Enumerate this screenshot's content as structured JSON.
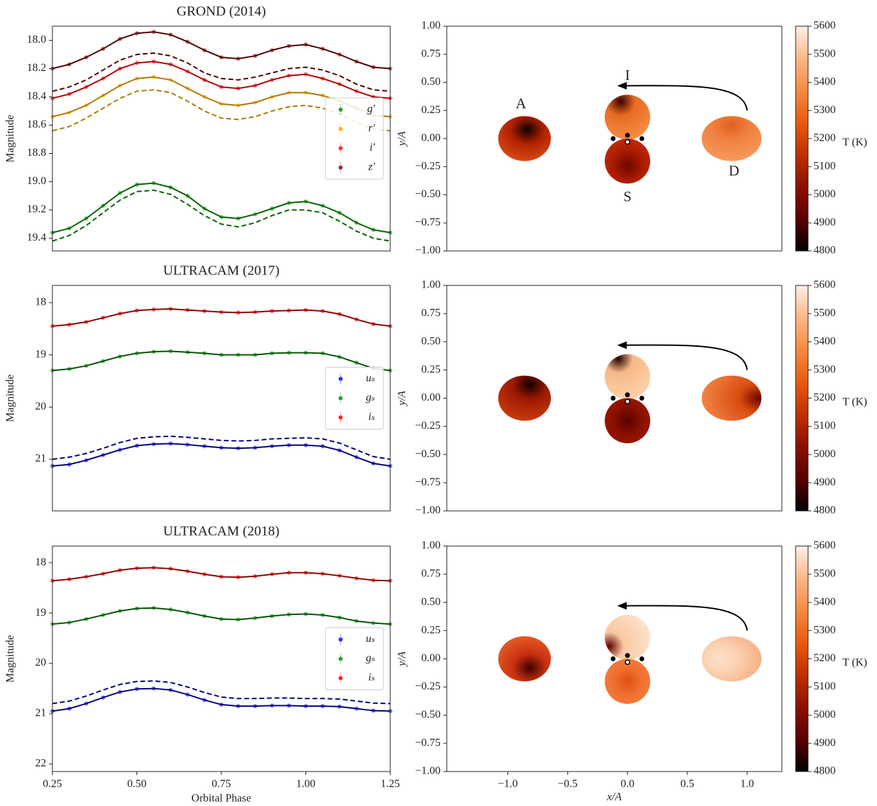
{
  "chart_data": [
    {
      "type": "line",
      "title": "GROND (2014)",
      "ylabel": "Magnitude",
      "legend": "center right",
      "xlim": [
        0.25,
        1.25
      ],
      "ylim": [
        19.49,
        17.9
      ],
      "yticks": [
        {
          "value": 18,
          "label": "18.0"
        },
        18.2,
        18.4,
        18.6,
        18.8,
        {
          "value": 19,
          "label": "19.0"
        },
        19.2,
        19.4
      ],
      "x": [
        0.25,
        0.3,
        0.35,
        0.4,
        0.45,
        0.5,
        0.55,
        0.6,
        0.65,
        0.7,
        0.75,
        0.8,
        0.85,
        0.9,
        0.95,
        1.0,
        1.05,
        1.1,
        1.15,
        1.2,
        1.25
      ],
      "series": [
        {
          "name": "g′",
          "color": "#2ca02c",
          "line_color": "#006400",
          "values": [
            19.36,
            19.33,
            19.26,
            19.17,
            19.08,
            19.02,
            19.01,
            19.04,
            19.1,
            19.19,
            19.25,
            19.26,
            19.23,
            19.19,
            19.15,
            19.14,
            19.17,
            19.22,
            19.29,
            19.34,
            19.36
          ],
          "values_dashed": [
            19.42,
            19.38,
            19.31,
            19.22,
            19.13,
            19.07,
            19.06,
            19.09,
            19.16,
            19.24,
            19.3,
            19.32,
            19.29,
            19.24,
            19.2,
            19.2,
            19.22,
            19.28,
            19.35,
            19.4,
            19.42
          ]
        },
        {
          "name": "r′",
          "color": "#ffb020",
          "line_color": "#b07800",
          "values": [
            18.54,
            18.51,
            18.46,
            18.39,
            18.32,
            18.27,
            18.26,
            18.28,
            18.34,
            18.4,
            18.45,
            18.46,
            18.44,
            18.4,
            18.37,
            18.37,
            18.39,
            18.43,
            18.48,
            18.53,
            18.54
          ],
          "values_dashed": [
            18.64,
            18.61,
            18.55,
            18.48,
            18.41,
            18.36,
            18.35,
            18.37,
            18.43,
            18.5,
            18.55,
            18.56,
            18.54,
            18.5,
            18.47,
            18.46,
            18.48,
            18.52,
            18.58,
            18.63,
            18.64
          ]
        },
        {
          "name": "i′",
          "color": "#ff3030",
          "line_color": "#b00000",
          "values": [
            18.41,
            18.38,
            18.33,
            18.27,
            18.2,
            18.16,
            18.15,
            18.17,
            18.22,
            18.28,
            18.33,
            18.34,
            18.32,
            18.28,
            18.25,
            18.24,
            18.27,
            18.31,
            18.36,
            18.4,
            18.41
          ]
        },
        {
          "name": "z′",
          "color": "#a03030",
          "line_color": "#500000",
          "values": [
            18.2,
            18.17,
            18.12,
            18.06,
            17.99,
            17.95,
            17.94,
            17.96,
            18.01,
            18.07,
            18.12,
            18.13,
            18.11,
            18.07,
            18.04,
            18.03,
            18.06,
            18.1,
            18.15,
            18.19,
            18.2
          ],
          "values_dashed": [
            18.36,
            18.33,
            18.28,
            18.21,
            18.14,
            18.1,
            18.09,
            18.11,
            18.16,
            18.23,
            18.27,
            18.28,
            18.26,
            18.23,
            18.2,
            18.19,
            18.21,
            18.25,
            18.31,
            18.35,
            18.36
          ]
        }
      ]
    },
    {
      "type": "map",
      "ylabel": "y/A",
      "annotations": [
        "A",
        "I",
        "S",
        "D"
      ],
      "xlim": [
        -1.51,
        1.29
      ],
      "ylim": [
        -1,
        1
      ],
      "yticks": [
        {
          "value": 1,
          "label": "1.00"
        },
        {
          "value": 0.75,
          "label": "0.75"
        },
        {
          "value": 0.5,
          "label": "0.50"
        },
        {
          "value": 0.25,
          "label": "0.25"
        },
        {
          "value": 0,
          "label": "0.00"
        },
        {
          "value": -0.25,
          "label": "−0.25"
        },
        {
          "value": -0.5,
          "label": "−0.50"
        },
        {
          "value": -0.75,
          "label": "−0.75"
        },
        {
          "value": -1,
          "label": "−1.00"
        }
      ],
      "clim": [
        4800,
        5600
      ],
      "cticks": [
        4800,
        4900,
        5000,
        5100,
        5200,
        5300,
        5400,
        5500,
        5600
      ],
      "clabel": "T (K)",
      "colors": [
        "#000000",
        "#5a0000",
        "#8b1000",
        "#c03000",
        "#e85a10",
        "#f48a40",
        "#fbb888",
        "#fff0e8"
      ]
    },
    {
      "type": "line",
      "title": "ULTRACAM (2017)",
      "ylabel": "Magnitude",
      "legend": "center right",
      "xlim": [
        0.25,
        1.25
      ],
      "ylim": [
        21.99,
        17.67
      ],
      "yticks": [
        18,
        19,
        20,
        21
      ],
      "x": [
        0.25,
        0.3,
        0.35,
        0.4,
        0.45,
        0.5,
        0.55,
        0.6,
        0.65,
        0.7,
        0.75,
        0.8,
        0.85,
        0.9,
        0.95,
        1.0,
        1.05,
        1.1,
        1.15,
        1.2,
        1.25
      ],
      "series": [
        {
          "name": "uₛ",
          "color": "#3030ff",
          "line_color": "#000080",
          "values": [
            21.13,
            21.1,
            21.02,
            20.92,
            20.82,
            20.74,
            20.71,
            20.7,
            20.72,
            20.75,
            20.78,
            20.79,
            20.78,
            20.75,
            20.73,
            20.73,
            20.75,
            20.83,
            20.96,
            21.08,
            21.13
          ],
          "values_dashed": [
            21.0,
            20.96,
            20.89,
            20.79,
            20.68,
            20.6,
            20.57,
            20.56,
            20.58,
            20.61,
            20.64,
            20.65,
            20.64,
            20.61,
            20.6,
            20.59,
            20.61,
            20.69,
            20.82,
            20.95,
            21.0
          ]
        },
        {
          "name": "gₛ",
          "color": "#2ca02c",
          "line_color": "#005500",
          "values": [
            19.3,
            19.27,
            19.21,
            19.12,
            19.03,
            18.97,
            18.94,
            18.93,
            18.95,
            18.97,
            19.0,
            19.0,
            19.0,
            18.97,
            18.96,
            18.96,
            18.97,
            19.04,
            19.15,
            19.26,
            19.3
          ]
        },
        {
          "name": "iₛ",
          "color": "#ff2020",
          "line_color": "#900000",
          "values": [
            18.45,
            18.42,
            18.37,
            18.29,
            18.21,
            18.15,
            18.13,
            18.12,
            18.14,
            18.16,
            18.18,
            18.19,
            18.18,
            18.16,
            18.15,
            18.14,
            18.16,
            18.22,
            18.32,
            18.41,
            18.45
          ]
        }
      ]
    },
    {
      "type": "map",
      "ylabel": "y/A",
      "xlim": [
        -1.51,
        1.29
      ],
      "ylim": [
        -1,
        1
      ],
      "yticks": [
        {
          "value": 1,
          "label": "1.00"
        },
        {
          "value": 0.75,
          "label": "0.75"
        },
        {
          "value": 0.5,
          "label": "0.50"
        },
        {
          "value": 0.25,
          "label": "0.25"
        },
        {
          "value": 0,
          "label": "0.00"
        },
        {
          "value": -0.25,
          "label": "−0.25"
        },
        {
          "value": -0.5,
          "label": "−0.50"
        },
        {
          "value": -0.75,
          "label": "−0.75"
        },
        {
          "value": -1,
          "label": "−1.00"
        }
      ],
      "clim": [
        4800,
        5600
      ],
      "cticks": [
        4800,
        4900,
        5000,
        5100,
        5200,
        5300,
        5400,
        5500,
        5600
      ],
      "clabel": "T (K)",
      "colors": [
        "#000000",
        "#5a0000",
        "#8b1000",
        "#c03000",
        "#e85a10",
        "#f48a40",
        "#fbb888",
        "#fff0e8"
      ]
    },
    {
      "type": "line",
      "title": "ULTRACAM (2018)",
      "ylabel": "Magnitude",
      "xlabel": "Orbital Phase",
      "legend": "center right",
      "xlim": [
        0.25,
        1.25
      ],
      "xticks": [
        0.25,
        {
          "value": 0.5,
          "label": "0.50"
        },
        0.75,
        {
          "value": 1,
          "label": "1.00"
        },
        1.25
      ],
      "ylim": [
        22.15,
        17.67
      ],
      "yticks": [
        18,
        19,
        20,
        21,
        22
      ],
      "x": [
        0.25,
        0.3,
        0.35,
        0.4,
        0.45,
        0.5,
        0.55,
        0.6,
        0.65,
        0.7,
        0.75,
        0.8,
        0.85,
        0.9,
        0.95,
        1.0,
        1.05,
        1.1,
        1.15,
        1.2,
        1.25
      ],
      "series": [
        {
          "name": "uₛ",
          "color": "#3030ff",
          "line_color": "#000080",
          "values": [
            20.95,
            20.9,
            20.8,
            20.68,
            20.57,
            20.51,
            20.5,
            20.53,
            20.62,
            20.73,
            20.82,
            20.85,
            20.85,
            20.84,
            20.84,
            20.85,
            20.85,
            20.86,
            20.9,
            20.94,
            20.95
          ],
          "values_dashed": [
            20.8,
            20.75,
            20.65,
            20.53,
            20.42,
            20.36,
            20.35,
            20.38,
            20.47,
            20.58,
            20.67,
            20.7,
            20.7,
            20.69,
            20.69,
            20.7,
            20.7,
            20.71,
            20.75,
            20.79,
            20.8
          ]
        },
        {
          "name": "gₛ",
          "color": "#2ca02c",
          "line_color": "#005500",
          "values": [
            19.22,
            19.19,
            19.12,
            19.04,
            18.96,
            18.91,
            18.9,
            18.93,
            18.99,
            19.06,
            19.12,
            19.13,
            19.1,
            19.06,
            19.03,
            19.02,
            19.04,
            19.09,
            19.16,
            19.2,
            19.22
          ]
        },
        {
          "name": "iₛ",
          "color": "#ff2020",
          "line_color": "#900000",
          "values": [
            18.36,
            18.33,
            18.28,
            18.22,
            18.15,
            18.11,
            18.1,
            18.12,
            18.17,
            18.23,
            18.28,
            18.29,
            18.27,
            18.23,
            18.2,
            18.2,
            18.22,
            18.26,
            18.31,
            18.35,
            18.36
          ]
        }
      ]
    },
    {
      "type": "map",
      "ylabel": "y/A",
      "xlabel": "x/A",
      "xlim": [
        -1.51,
        1.29
      ],
      "ylim": [
        -1,
        1
      ],
      "xticks": [
        {
          "value": -1,
          "label": "−1.0"
        },
        {
          "value": -0.5,
          "label": "−0.5"
        },
        {
          "value": 0,
          "label": "0.0"
        },
        {
          "value": 0.5,
          "label": "0.5"
        },
        {
          "value": 1,
          "label": "1.0"
        }
      ],
      "yticks": [
        {
          "value": 1,
          "label": "1.00"
        },
        {
          "value": 0.75,
          "label": "0.75"
        },
        {
          "value": 0.5,
          "label": "0.50"
        },
        {
          "value": 0.25,
          "label": "0.25"
        },
        {
          "value": 0,
          "label": "0.00"
        },
        {
          "value": -0.25,
          "label": "−0.25"
        },
        {
          "value": -0.5,
          "label": "−0.50"
        },
        {
          "value": -0.75,
          "label": "−0.75"
        },
        {
          "value": -1,
          "label": "−1.00"
        }
      ],
      "clim": [
        4800,
        5600
      ],
      "cticks": [
        4800,
        4900,
        5000,
        5100,
        5200,
        5300,
        5400,
        5500,
        5600
      ],
      "clabel": "T (K)",
      "colors": [
        "#000000",
        "#5a0000",
        "#8b1000",
        "#c03000",
        "#e85a10",
        "#f48a40",
        "#fbb888",
        "#fff0e8"
      ]
    }
  ]
}
